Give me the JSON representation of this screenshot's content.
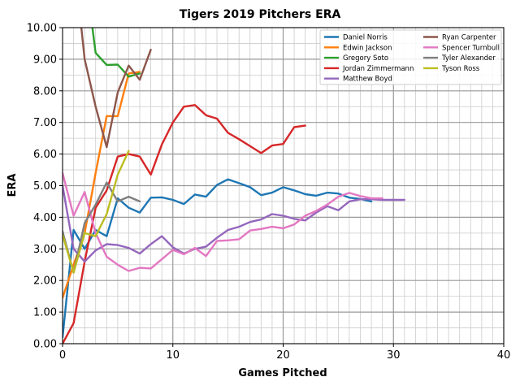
{
  "chart_data": {
    "type": "line",
    "title": "Tigers 2019 Pitchers ERA",
    "xlabel": "Games Pitched",
    "ylabel": "ERA",
    "xlim": [
      0,
      40
    ],
    "ylim": [
      0,
      10
    ],
    "xticks": [
      0,
      10,
      20,
      30,
      40
    ],
    "xtick_labels": [
      "0",
      "10",
      "20",
      "30",
      "40"
    ],
    "yticks": [
      0,
      1,
      2,
      3,
      4,
      5,
      6,
      7,
      8,
      9,
      10
    ],
    "ytick_labels": [
      "0.00",
      "1.00",
      "2.00",
      "3.00",
      "4.00",
      "5.00",
      "6.00",
      "7.00",
      "8.00",
      "9.00",
      "10.00"
    ],
    "grid": true,
    "legend_position": "upper-right",
    "series": [
      {
        "name": "Daniel Norris",
        "color": "#1f77b4",
        "x": [
          0,
          1,
          2,
          3,
          4,
          5,
          6,
          7,
          8,
          9,
          10,
          11,
          12,
          13,
          14,
          15,
          16,
          17,
          18,
          19,
          20,
          21,
          22,
          23,
          24,
          25,
          26,
          27,
          28
        ],
        "y": [
          0.2,
          3.6,
          3.0,
          3.6,
          3.4,
          4.6,
          4.3,
          4.15,
          4.62,
          4.63,
          4.55,
          4.42,
          4.72,
          4.65,
          5.02,
          5.2,
          5.08,
          4.95,
          4.7,
          4.78,
          4.95,
          4.85,
          4.73,
          4.68,
          4.78,
          4.75,
          4.62,
          4.58,
          4.5
        ]
      },
      {
        "name": "Edwin Jackson",
        "color": "#ff7f0e",
        "x": [
          0,
          1,
          2,
          3,
          4,
          5,
          6,
          7
        ],
        "y": [
          1.45,
          2.5,
          3.5,
          5.4,
          7.2,
          7.2,
          8.55,
          8.6
        ]
      },
      {
        "name": "Gregory Soto",
        "color": "#2ca02c",
        "x": [
          2.7,
          3,
          4,
          5,
          6,
          7
        ],
        "y": [
          10.0,
          9.2,
          8.82,
          8.83,
          8.45,
          8.55
        ]
      },
      {
        "name": "Jordan Zimmermann",
        "color": "#d62728",
        "x": [
          0,
          1,
          2,
          3,
          4,
          5,
          6,
          7,
          8,
          9,
          10,
          11,
          12,
          13,
          14,
          15,
          16,
          17,
          18,
          19,
          20,
          21,
          22
        ],
        "y": [
          0.0,
          0.65,
          2.6,
          4.3,
          4.85,
          5.92,
          6.0,
          5.92,
          5.35,
          6.3,
          7.0,
          7.5,
          7.55,
          7.23,
          7.12,
          6.67,
          6.47,
          6.25,
          6.03,
          6.27,
          6.32,
          6.85,
          6.9
        ]
      },
      {
        "name": "Matthew Boyd",
        "color": "#9467bd",
        "x": [
          0,
          1,
          2,
          3,
          4,
          5,
          6,
          7,
          8,
          9,
          10,
          11,
          12,
          13,
          14,
          15,
          16,
          17,
          18,
          19,
          20,
          21,
          22,
          23,
          24,
          25,
          26,
          27,
          28,
          29,
          30,
          31
        ],
        "y": [
          5.0,
          3.0,
          2.6,
          2.95,
          3.15,
          3.12,
          3.03,
          2.85,
          3.15,
          3.4,
          3.05,
          2.85,
          3.0,
          3.07,
          3.35,
          3.6,
          3.7,
          3.85,
          3.93,
          4.1,
          4.05,
          3.95,
          3.9,
          4.15,
          4.35,
          4.22,
          4.5,
          4.57,
          4.57,
          4.55,
          4.55,
          4.55
        ]
      },
      {
        "name": "Ryan Carpenter",
        "color": "#8c564b",
        "x": [
          1.7,
          2,
          3,
          4,
          5,
          6,
          7,
          8
        ],
        "y": [
          10.0,
          9.0,
          7.5,
          6.22,
          7.95,
          8.8,
          8.35,
          9.3
        ]
      },
      {
        "name": "Spencer Turnbull",
        "color": "#e377c2",
        "x": [
          0,
          1,
          2,
          3,
          4,
          5,
          6,
          7,
          8,
          9,
          10,
          11,
          12,
          13,
          14,
          15,
          16,
          17,
          18,
          19,
          20,
          21,
          22,
          23,
          24,
          25,
          26,
          27,
          28,
          29
        ],
        "y": [
          5.4,
          4.05,
          4.8,
          3.5,
          2.75,
          2.5,
          2.3,
          2.4,
          2.38,
          2.67,
          2.97,
          2.83,
          3.03,
          2.77,
          3.25,
          3.27,
          3.3,
          3.58,
          3.63,
          3.7,
          3.65,
          3.77,
          4.05,
          4.2,
          4.4,
          4.65,
          4.77,
          4.67,
          4.6,
          4.6
        ]
      },
      {
        "name": "Tyler Alexander",
        "color": "#7f7f7f",
        "x": [
          0,
          1,
          2,
          3,
          4,
          5,
          6,
          7
        ],
        "y": [
          3.55,
          2.25,
          3.82,
          4.4,
          5.1,
          4.5,
          4.65,
          4.5
        ]
      },
      {
        "name": "Tyson Ross",
        "color": "#bcbd22",
        "x": [
          0,
          1,
          2,
          3,
          4,
          5,
          6
        ],
        "y": [
          3.45,
          2.25,
          3.5,
          3.4,
          4.1,
          5.35,
          6.1
        ]
      }
    ]
  }
}
